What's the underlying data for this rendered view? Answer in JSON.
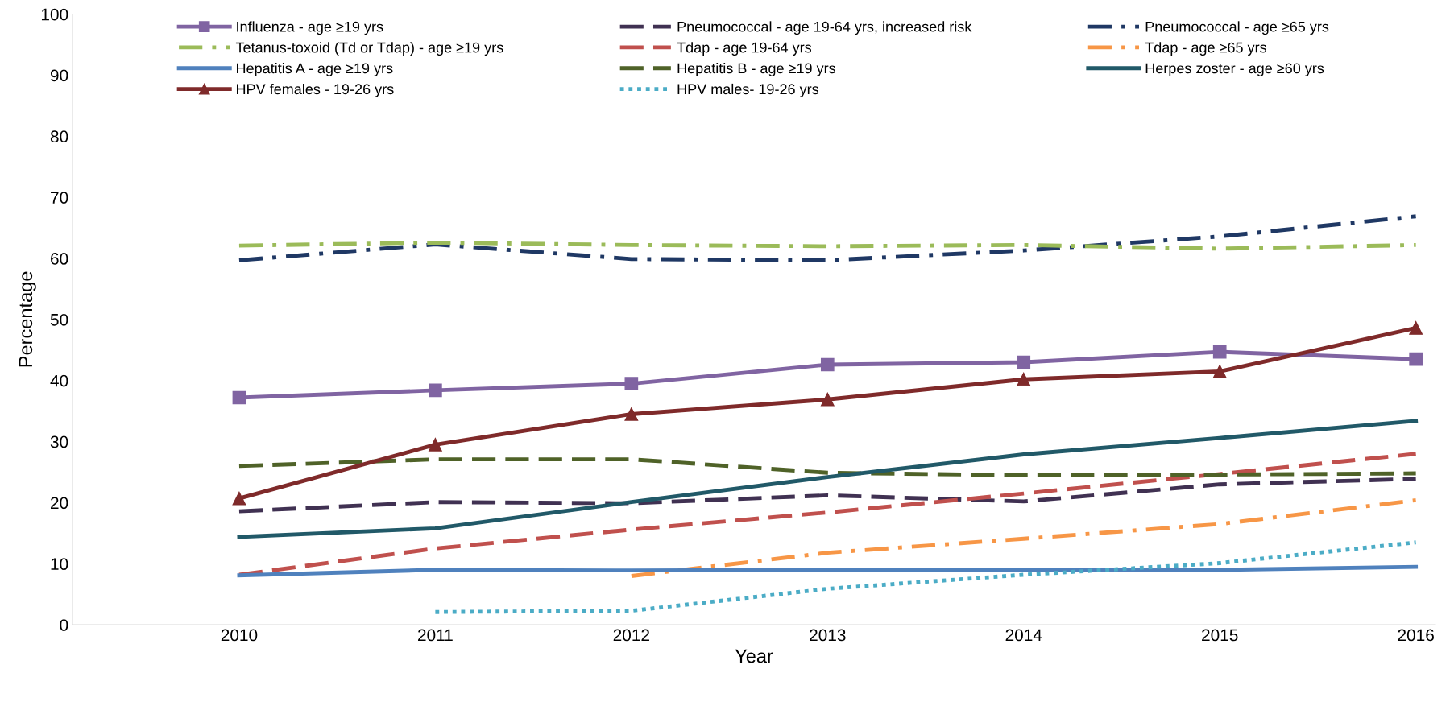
{
  "chart_data": {
    "type": "line",
    "xlabel": "Year",
    "ylabel": "Percentage",
    "categories": [
      "2010",
      "2011",
      "2012",
      "2013",
      "2014",
      "2015",
      "2016"
    ],
    "ylim": [
      0,
      100
    ],
    "yticks": [
      0,
      10,
      20,
      30,
      40,
      50,
      60,
      70,
      80,
      90,
      100
    ],
    "grid": false,
    "legend": "top",
    "series": [
      {
        "name": "Influenza - age ≥19 yrs",
        "color": "#8064a2",
        "line_style": "solid",
        "marker": "square",
        "values": [
          37.2,
          38.4,
          39.5,
          42.6,
          43.0,
          44.7,
          43.5
        ]
      },
      {
        "name": "Pneumococcal - age 19-64 yrs, increased risk",
        "color": "#403152",
        "line_style": "dashed",
        "values": [
          18.6,
          20.1,
          19.9,
          21.2,
          20.2,
          23.0,
          23.9
        ]
      },
      {
        "name": "Pneumococcal - age ≥65 yrs",
        "color": "#1f3864",
        "line_style": "dashdot",
        "values": [
          59.7,
          62.3,
          59.9,
          59.7,
          61.3,
          63.6,
          66.9
        ]
      },
      {
        "name": "Tetanus-toxoid (Td or Tdap) - age ≥19 yrs",
        "color": "#9bbb59",
        "line_style": "dashdot",
        "values": [
          62.1,
          62.6,
          62.2,
          62.0,
          62.2,
          61.6,
          62.2
        ]
      },
      {
        "name": "Tdap - age 19-64 yrs",
        "color": "#c0504d",
        "line_style": "dashed",
        "values": [
          8.2,
          12.5,
          15.6,
          18.4,
          21.5,
          24.7,
          28.0
        ]
      },
      {
        "name": "Tdap - age ≥65 yrs",
        "color": "#f79646",
        "line_style": "dashdot",
        "values": [
          null,
          null,
          8.0,
          11.8,
          14.1,
          16.5,
          20.4
        ]
      },
      {
        "name": "Hepatitis A - age ≥19 yrs",
        "color": "#4f81bd",
        "line_style": "solid",
        "values": [
          8.1,
          9.0,
          8.9,
          9.0,
          9.0,
          9.0,
          9.5
        ]
      },
      {
        "name": "Hepatitis B - age ≥19 yrs",
        "color": "#4f6228",
        "line_style": "dashed",
        "values": [
          26.0,
          27.1,
          27.1,
          24.9,
          24.5,
          24.6,
          24.8
        ]
      },
      {
        "name": "Herpes zoster - age ≥60 yrs",
        "color": "#215968",
        "line_style": "solid",
        "values": [
          14.4,
          15.8,
          20.1,
          24.2,
          27.9,
          30.6,
          33.4
        ]
      },
      {
        "name": "HPV females - 19-26 yrs",
        "color": "#7f2a2a",
        "line_style": "solid",
        "marker": "triangle",
        "values": [
          20.7,
          29.5,
          34.5,
          36.9,
          40.2,
          41.5,
          48.6
        ]
      },
      {
        "name": "HPV males- 19-26 yrs",
        "color": "#4bacc6",
        "line_style": "dotted",
        "values": [
          null,
          2.1,
          2.3,
          5.9,
          8.2,
          10.1,
          13.5
        ]
      }
    ]
  }
}
